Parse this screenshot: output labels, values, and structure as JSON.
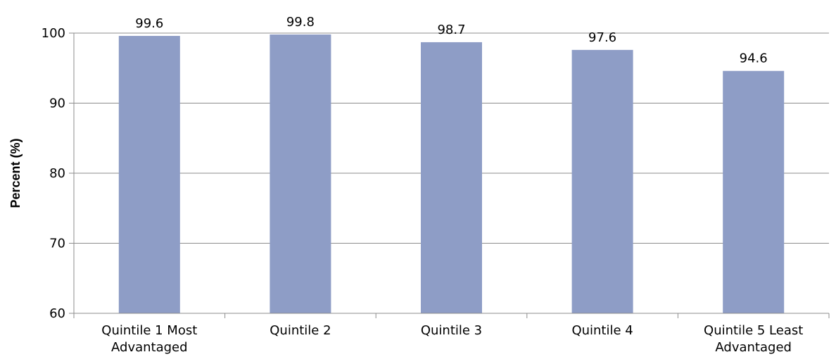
{
  "chart_data": {
    "type": "bar",
    "title": "",
    "xlabel": "",
    "ylabel": "Percent (%)",
    "categories": [
      [
        "Quintile 1 Most",
        "Advantaged"
      ],
      [
        "Quintile 2"
      ],
      [
        "Quintile 3"
      ],
      [
        "Quintile 4"
      ],
      [
        "Quintile 5 Least",
        "Advantaged"
      ]
    ],
    "values": [
      99.6,
      99.8,
      98.7,
      97.6,
      94.6
    ],
    "value_labels": [
      "99.6",
      "99.8",
      "98.7",
      "97.6",
      "94.6"
    ],
    "ylim": [
      60,
      100
    ],
    "yticks": [
      60,
      70,
      80,
      90,
      100
    ],
    "ytick_labels": [
      "60",
      "70",
      "80",
      "90",
      "100"
    ],
    "grid": true,
    "legend": "none",
    "colors": {
      "bar": "#8e9dc6"
    }
  }
}
